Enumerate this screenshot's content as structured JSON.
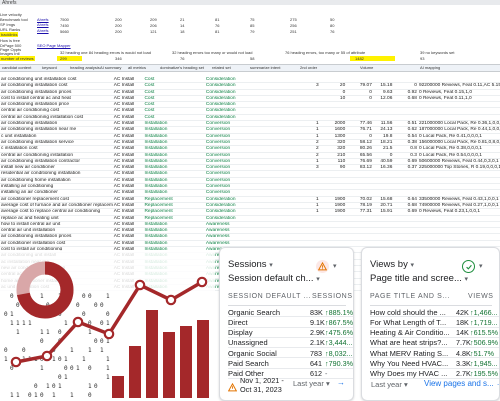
{
  "sheet": {
    "title": "Ahrefs",
    "side_notes": [
      "Live velocity",
      "Benchmark tool",
      "SP Imgs",
      "URL Ranks",
      "backlinks"
    ],
    "side_notes2": [
      "How is free",
      "DrPage 500",
      "Page Oppts",
      "Images Intl"
    ],
    "side_label": "number of reviews",
    "links": [
      "Ahrefs",
      "Ahrefs",
      "Ahrefs"
    ],
    "link_right": "SEO Page Mapper",
    "metric_notes": [
      "32 heading one 84 heading errors is would not load",
      "32 heading errors too many or would not load",
      "76 heading errors, too many or 55 of attribute",
      "39 no keywords set"
    ],
    "top_numbers": [
      [
        "7500",
        "200",
        "209",
        "21",
        "81",
        "75",
        "275",
        "50"
      ],
      [
        "7450",
        "200",
        "206",
        "14",
        "76",
        "85",
        "256",
        "80"
      ],
      [
        "5660",
        "200",
        "121",
        "18",
        "81",
        "79",
        "251",
        "76"
      ]
    ],
    "highlight_numbers": [
      "299",
      "346",
      "76",
      "58",
      "1482",
      "93"
    ],
    "tabs": [
      "candidat content",
      "keyword",
      "heading analysis",
      "AI summary",
      "all metrics",
      "dominatize's heading set",
      "related set",
      "summarize intent",
      "2nd order",
      "Volume",
      "AI mapping"
    ],
    "col_headers": [
      "Intent",
      "Page group",
      "Global",
      "Target page",
      "Position",
      "Word",
      "Pos.",
      "Word",
      "CPC",
      "SERP"
    ],
    "rows": [
      [
        "air conditioning unit installation cost",
        "AC Install",
        "Cost",
        "Consideration",
        "",
        "",
        "",
        "",
        "",
        ""
      ],
      [
        "air conditioning installation cost",
        "AC Install",
        "Cost",
        "Consideration",
        "3",
        "20",
        "79.07",
        "15.18",
        "0",
        "92200000 Reviews, Feat 0.11,AC 5.15,0"
      ],
      [
        "air conditioning installation prices",
        "AC Install",
        "Cost",
        "Consideration",
        "",
        "0",
        "0",
        "9.63",
        "0.92",
        "0 Reviews, Feat 0.15,1,0"
      ],
      [
        "cost to install central ac and heat",
        "AC Install",
        "Cost",
        "Consideration",
        "",
        "10",
        "0",
        "12.06",
        "0.68",
        "0 Reviews, Feat 0.11,1,0"
      ],
      [
        "air conditioning installation price",
        "AC Install",
        "Cost",
        "Consideration",
        "",
        "",
        "",
        "",
        "",
        ""
      ],
      [
        "central air conditioning cost",
        "AC Install",
        "Cost",
        "Consideration",
        "",
        "",
        "",
        "",
        "",
        ""
      ],
      [
        "central air conditioning installation cost",
        "AC Install",
        "Cost",
        "Consideration",
        "",
        "",
        "",
        "",
        "",
        ""
      ],
      [
        "air conditioning installation",
        "AC Install",
        "Installation",
        "Conversion",
        "1",
        "2000",
        "77.46",
        "11.56",
        "0.51",
        "221000000 Local Pack, Re 0.36,1,0,0,1"
      ],
      [
        "air conditioning installation near me",
        "AC Install",
        "Installation",
        "Conversion",
        "1",
        "1600",
        "76.71",
        "24.13",
        "0.62",
        "187000000 Local Pack, Re 0.44,1,0,0,1"
      ],
      [
        "c unit installation",
        "AC Install",
        "Installation",
        "Conversion",
        "1",
        "1300",
        "0",
        "19.8",
        "0.54",
        "0 Local Pack, Re 0.41,0,0,0,1"
      ],
      [
        "air conditioning installation service",
        "AC Install",
        "Installation",
        "Conversion",
        "2",
        "320",
        "58.12",
        "18.21",
        "0.38",
        "156000000 Local Pack, Re 0.81,0,8,0,1"
      ],
      [
        "c installation cost",
        "AC Install",
        "Installation",
        "Conversion",
        "2",
        "320",
        "80.26",
        "21.5",
        "0.8",
        "0 Local Pack, Re 0.38,0,0,0,1"
      ],
      [
        "central air conditioning installation",
        "AC Install",
        "Installation",
        "Conversion",
        "2",
        "210",
        "65.56",
        "0",
        "0.3",
        "0 Local Pack, Re 0.54,0,0,0,1"
      ],
      [
        "air conditioning installation contractor",
        "AC Install",
        "Installation",
        "Conversion",
        "1",
        "110",
        "76.69",
        "40.59",
        "0.69",
        "50600000 Reviews, Feat 0.44,0,3,0,1"
      ],
      [
        "install new air conditioner",
        "AC Install",
        "Installation",
        "Conversion",
        "3",
        "90",
        "83.12",
        "16.36",
        "0.37",
        "225000000 Top Stories, R 0.19,0,0,0,1"
      ],
      [
        "residential air conditioning installation",
        "AC Install",
        "Installation",
        "Conversion",
        "",
        "",
        "",
        "",
        "",
        ""
      ],
      [
        "air conditioning home installation",
        "AC Install",
        "Installation",
        "Conversion",
        "",
        "",
        "",
        "",
        "",
        ""
      ],
      [
        "installing air conditioning",
        "AC Install",
        "Installation",
        "Conversion",
        "",
        "",
        "",
        "",
        "",
        ""
      ],
      [
        "installing an air conditioner",
        "AC Install",
        "Installation",
        "Conversion",
        "",
        "",
        "",
        "",
        "",
        ""
      ],
      [
        "air conditioner replacement cost",
        "AC Install",
        "Replacement",
        "Consideration",
        "1",
        "1900",
        "70.02",
        "15.68",
        "0.64",
        "33500000 Reviews, Feat 0.43,1,0,0,1"
      ],
      [
        "average cost of furnace and air conditioner replaceme",
        "AC Install",
        "Replacement",
        "Consideration",
        "1",
        "1900",
        "78.19",
        "20.71",
        "0.68",
        "74900000 Reviews, Feat 0.27,1,0,0,1"
      ],
      [
        "average cost to replace central air conditioning",
        "AC Install",
        "Replacement",
        "Consideration",
        "1",
        "1900",
        "77.31",
        "15.91",
        "0.69",
        "0 Reviews, Feat 0.23,1,0,0,1"
      ],
      [
        "replace ac and heating unit",
        "AC Install",
        "Replacement",
        "Consideration",
        "",
        "",
        "",
        "",
        "",
        ""
      ],
      [
        "how to install central air unit",
        "AC Install",
        "Installation",
        "Awareness",
        "",
        "",
        "",
        "",
        "",
        ""
      ],
      [
        "central air unit installation",
        "AC Install",
        "Installation",
        "Awareness",
        "",
        "",
        "",
        "",
        "",
        ""
      ],
      [
        "air conditioning installation prices",
        "AC Install",
        "Installation",
        "Awareness",
        "",
        "",
        "",
        "",
        "",
        ""
      ],
      [
        "air conditioner installation cost",
        "AC Install",
        "Installation",
        "Awareness",
        "",
        "",
        "",
        "",
        "",
        ""
      ],
      [
        "cost to install air conditioning",
        "AC Install",
        "Installation",
        "Awareness",
        "",
        "",
        "",
        "",
        "",
        ""
      ],
      [
        "air conditioning unit install",
        "AC Install",
        "Installation",
        "Awareness",
        "",
        "",
        "",
        "",
        "",
        ""
      ],
      [
        "ac installation near me",
        "AC Install",
        "Installation",
        "Awareness",
        "",
        "",
        "",
        "",
        "",
        ""
      ],
      [
        "new air conditioner installation",
        "AC Install",
        "Installation",
        "Awareness",
        "",
        "",
        "",
        "",
        "",
        ""
      ],
      [
        "central ac install price",
        "AC Install",
        "Installation",
        "Awareness",
        "",
        "",
        "",
        "",
        "",
        ""
      ],
      [
        "home air conditioner install",
        "AC Install",
        "Installation",
        "Awareness",
        "",
        "",
        "",
        "",
        "",
        ""
      ],
      [
        "ac unit installation cost",
        "AC Install",
        "Installation",
        "Awareness",
        "",
        "",
        "",
        "",
        "",
        ""
      ]
    ]
  },
  "card1": {
    "title": "Sessions",
    "subtitle": "Session default ch...",
    "warning_icon": "warning-triangle-icon",
    "col1": "SESSION DEFAULT ...",
    "col2": "SESSIONS",
    "rows": [
      {
        "name": "Organic Search",
        "value": "83K",
        "change": "↑885.1%"
      },
      {
        "name": "Direct",
        "value": "9.1K",
        "change": "↑867.5%"
      },
      {
        "name": "Display",
        "value": "2.9K",
        "change": "↑475.6%"
      },
      {
        "name": "Unassigned",
        "value": "2.1K",
        "change": "↑3,444..."
      },
      {
        "name": "Organic Social",
        "value": "783",
        "change": "↑8,032..."
      },
      {
        "name": "Paid Search",
        "value": "641",
        "change": "↑790.3%"
      },
      {
        "name": "Paid Other",
        "value": "612",
        "change": "-"
      }
    ],
    "date_range": "Nov 1, 2021 - Oct 31, 2023",
    "period": "Last year",
    "accent": "#e37400"
  },
  "card2": {
    "title": "Views by",
    "subtitle": "Page title and scree...",
    "status_icon": "check-circle-icon",
    "col1": "PAGE TITLE AND S...",
    "col2": "VIEWS",
    "rows": [
      {
        "name": "How cold should the ...",
        "value": "42K",
        "change": "↑1,466..."
      },
      {
        "name": "For What Length of T...",
        "value": "18K",
        "change": "↑1,719..."
      },
      {
        "name": "Heating & Air Conditio...",
        "value": "14K",
        "change": "↑615.5%"
      },
      {
        "name": "What are heat strips?...",
        "value": "7.7K",
        "change": "↑506.9%"
      },
      {
        "name": "What MERV Rating S...",
        "value": "4.8K",
        "change": "↑51.7%"
      },
      {
        "name": "Why You Need HVAC...",
        "value": "3.3K",
        "change": "↑1,945..."
      },
      {
        "name": "Why Does my HVAC ...",
        "value": "2.7K",
        "change": "↑195.5%"
      }
    ],
    "period": "Last year",
    "view_link": "View pages and s...",
    "accent": "#1e8e3e"
  },
  "art": {
    "brand_color": "#a4282a",
    "bar_values": [
      22,
      52,
      88,
      66,
      72,
      78
    ],
    "line_values": [
      38,
      44,
      78,
      66,
      115,
      100,
      118
    ],
    "donut_fraction": 0.72
  }
}
